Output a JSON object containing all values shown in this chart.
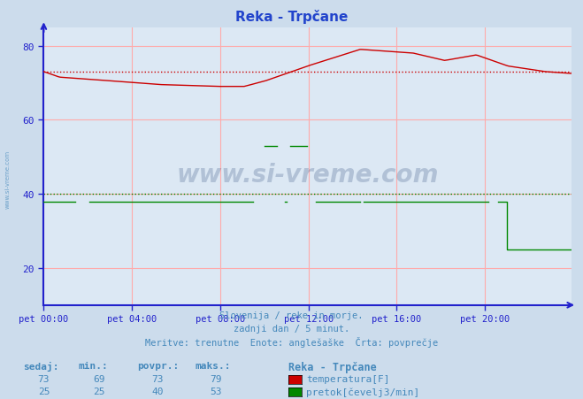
{
  "title": "Reka - Trpčane",
  "bg_color": "#ccdcec",
  "plot_bg_color": "#dce8f4",
  "grid_color": "#ffaaaa",
  "xlabel_ticks": [
    "pet 00:00",
    "pet 04:00",
    "pet 08:00",
    "pet 12:00",
    "pet 16:00",
    "pet 20:00"
  ],
  "ylim_min": 10,
  "ylim_max": 85,
  "xlim_min": 0,
  "xlim_max": 287,
  "footer_lines": [
    "Slovenija / reke in morje.",
    "zadnji dan / 5 minut.",
    "Meritve: trenutne  Enote: anglešaške  Črta: povprečje"
  ],
  "table_headers": [
    "sedaj:",
    "min.:",
    "povpr.:",
    "maks.:"
  ],
  "table_row1": [
    "73",
    "69",
    "73",
    "79"
  ],
  "table_row2": [
    "25",
    "25",
    "40",
    "53"
  ],
  "legend_title": "Reka - Trpčane",
  "legend_items": [
    "temperatura[F]",
    "pretok[čevelj3/min]"
  ],
  "legend_colors": [
    "#cc0000",
    "#008800"
  ],
  "temp_avg": 73,
  "flow_avg": 40,
  "watermark": "www.si-vreme.com",
  "axis_color": "#2222cc",
  "text_color": "#4488bb",
  "title_color": "#2244cc"
}
